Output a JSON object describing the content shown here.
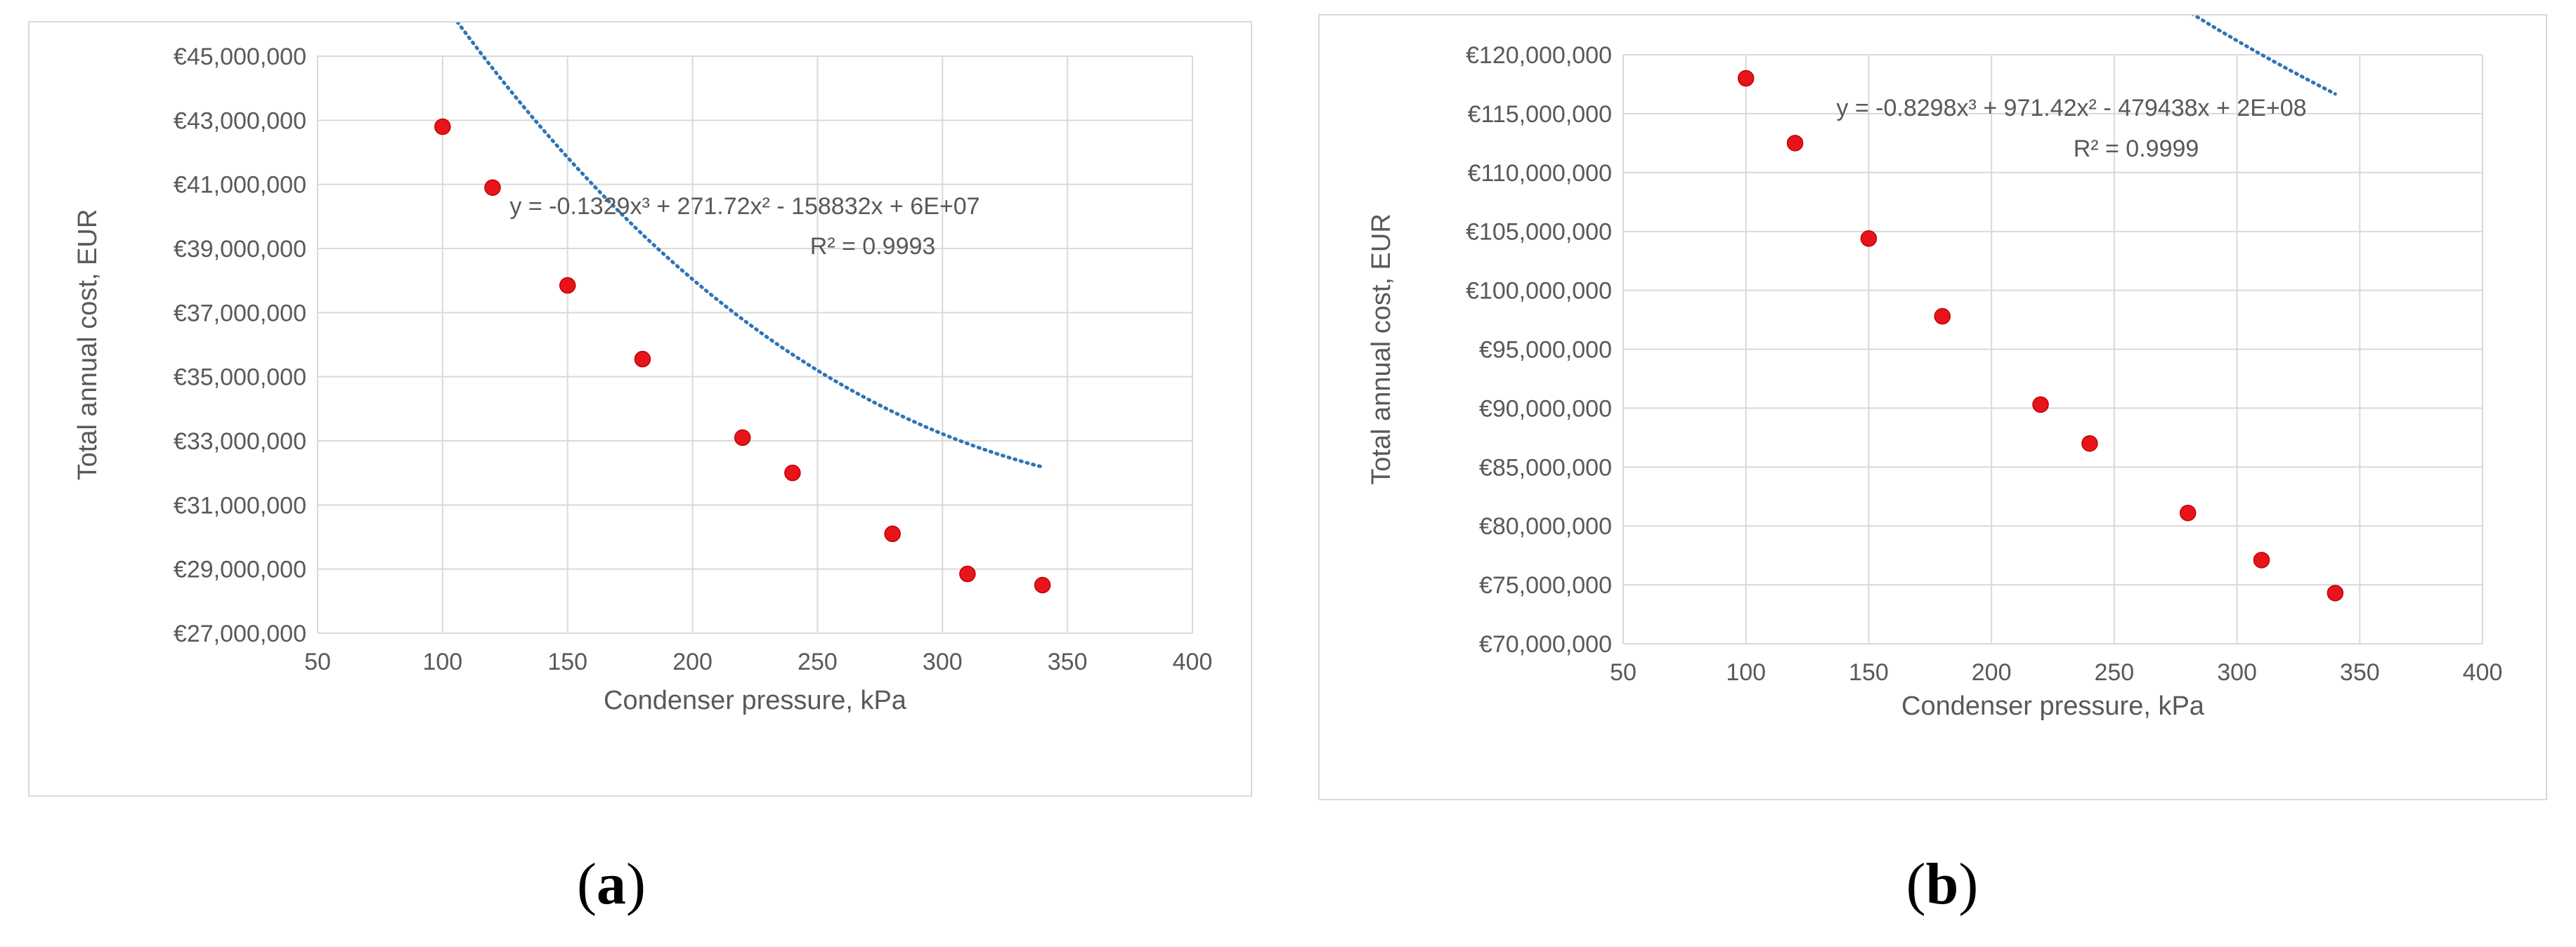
{
  "chart_data": [
    {
      "type": "scatter",
      "panel_label": "a",
      "xlabel": "Condenser pressure, kPa",
      "ylabel": "Total annual cost, EUR",
      "xlim": [
        50,
        400
      ],
      "ylim": [
        27000000,
        45000000
      ],
      "x_ticks": [
        50,
        100,
        150,
        200,
        250,
        300,
        350,
        400
      ],
      "y_ticks": [
        27000000,
        29000000,
        31000000,
        33000000,
        35000000,
        37000000,
        39000000,
        41000000,
        43000000,
        45000000
      ],
      "y_tick_labels": [
        "€27,000,000",
        "€29,000,000",
        "€31,000,000",
        "€33,000,000",
        "€35,000,000",
        "€37,000,000",
        "€39,000,000",
        "€41,000,000",
        "€43,000,000",
        "€45,000,000"
      ],
      "grid": true,
      "legend": "none",
      "marker_color": "#e8141c",
      "trendline_color": "#2e75b6",
      "trendline": {
        "type": "polynomial",
        "order": 3,
        "coefficients": [
          -0.1329,
          271.72,
          -158832,
          60000000
        ],
        "range": [
          100,
          340
        ],
        "equation": "y = -0.1329x³ + 271.72x² - 158832x + 6E+07",
        "r_squared": "R² = 0.9993"
      },
      "points": [
        {
          "x": 100,
          "y": 42800000
        },
        {
          "x": 120,
          "y": 40900000
        },
        {
          "x": 150,
          "y": 37850000
        },
        {
          "x": 180,
          "y": 35550000
        },
        {
          "x": 220,
          "y": 33100000
        },
        {
          "x": 240,
          "y": 32000000
        },
        {
          "x": 280,
          "y": 30100000
        },
        {
          "x": 310,
          "y": 28850000
        },
        {
          "x": 340,
          "y": 28500000
        }
      ]
    },
    {
      "type": "scatter",
      "panel_label": "b",
      "xlabel": "Condenser pressure, kPa",
      "ylabel": "Total annual cost, EUR",
      "xlim": [
        50,
        400
      ],
      "ylim": [
        70000000,
        120000000
      ],
      "x_ticks": [
        50,
        100,
        150,
        200,
        250,
        300,
        350,
        400
      ],
      "y_ticks": [
        70000000,
        75000000,
        80000000,
        85000000,
        90000000,
        95000000,
        100000000,
        105000000,
        110000000,
        115000000,
        120000000
      ],
      "y_tick_labels": [
        "€70,000,000",
        "€75,000,000",
        "€80,000,000",
        "€85,000,000",
        "€90,000,000",
        "€95,000,000",
        "€100,000,000",
        "€105,000,000",
        "€110,000,000",
        "€115,000,000",
        "€120,000,000"
      ],
      "grid": true,
      "legend": "none",
      "marker_color": "#e8141c",
      "trendline_color": "#2e75b6",
      "trendline": {
        "type": "polynomial",
        "order": 3,
        "coefficients": [
          -0.8298,
          971.42,
          -479438,
          200000000
        ],
        "range": [
          100,
          340
        ],
        "equation": "y = -0.8298x³ + 971.42x² - 479438x + 2E+08",
        "r_squared": "R² = 0.9999"
      },
      "points": [
        {
          "x": 100,
          "y": 118000000
        },
        {
          "x": 120,
          "y": 112500000
        },
        {
          "x": 150,
          "y": 104400000
        },
        {
          "x": 180,
          "y": 97800000
        },
        {
          "x": 220,
          "y": 90300000
        },
        {
          "x": 240,
          "y": 87000000
        },
        {
          "x": 280,
          "y": 81100000
        },
        {
          "x": 310,
          "y": 77100000
        },
        {
          "x": 340,
          "y": 74300000
        }
      ]
    }
  ],
  "captions": {
    "a": "a",
    "b": "b"
  }
}
